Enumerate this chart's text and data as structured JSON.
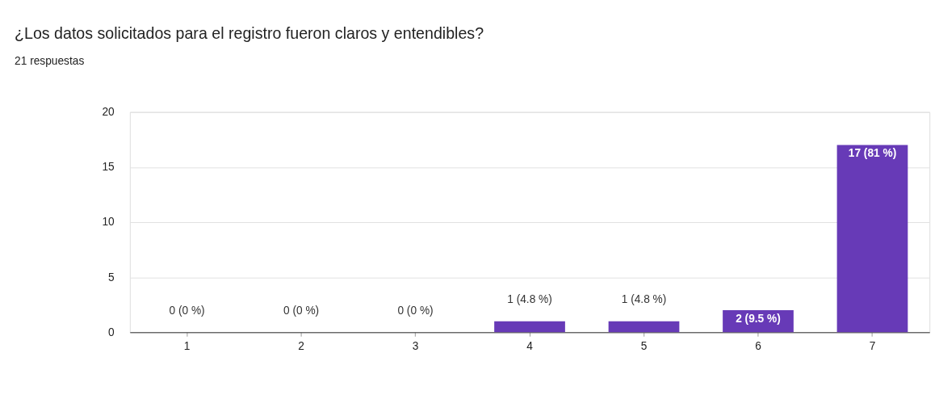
{
  "chart_data": {
    "type": "bar",
    "title": "¿Los datos solicitados para el registro fueron claros y entendibles?",
    "subtitle": "21 respuestas",
    "categories": [
      "1",
      "2",
      "3",
      "4",
      "5",
      "6",
      "7"
    ],
    "values": [
      0,
      0,
      0,
      1,
      1,
      2,
      17
    ],
    "value_labels": [
      "0 (0 %)",
      "0 (0 %)",
      "0 (0 %)",
      "1 (4.8 %)",
      "1 (4.8 %)",
      "2 (9.5 %)",
      "17 (81 %)"
    ],
    "color": "#673ab7",
    "ylim": [
      0,
      20
    ],
    "yticks": [
      0,
      5,
      10,
      15,
      20
    ],
    "grid": "y"
  }
}
